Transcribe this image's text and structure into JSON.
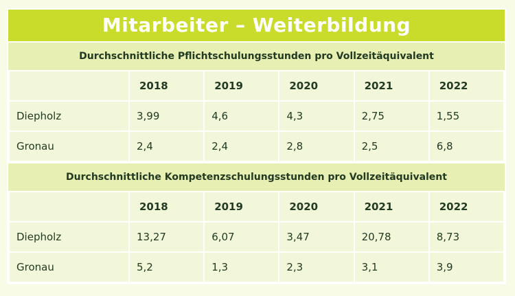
{
  "title": "Mitarbeiter – Weiterbildung",
  "tables": [
    {
      "heading": "Durchschnittliche Pflichtschulungsstunden pro Vollzeitäquivalent",
      "years": [
        "2018",
        "2019",
        "2020",
        "2021",
        "2022"
      ],
      "rows": [
        {
          "label": "Diepholz",
          "values": [
            "3,99",
            "4,6",
            "4,3",
            "2,75",
            "1,55"
          ]
        },
        {
          "label": "Gronau",
          "values": [
            "2,4",
            "2,4",
            "2,8",
            "2,5",
            "6,8"
          ]
        }
      ]
    },
    {
      "heading": "Durchschnittliche Kompetenzschulungsstunden pro Vollzeitäquivalent",
      "years": [
        "2018",
        "2019",
        "2020",
        "2021",
        "2022"
      ],
      "rows": [
        {
          "label": "Diepholz",
          "values": [
            "13,27",
            "6,07",
            "3,47",
            "20,78",
            "8,73"
          ]
        },
        {
          "label": "Gronau",
          "values": [
            "5,2",
            "1,3",
            "2,3",
            "3,1",
            "3,9"
          ]
        }
      ]
    }
  ]
}
